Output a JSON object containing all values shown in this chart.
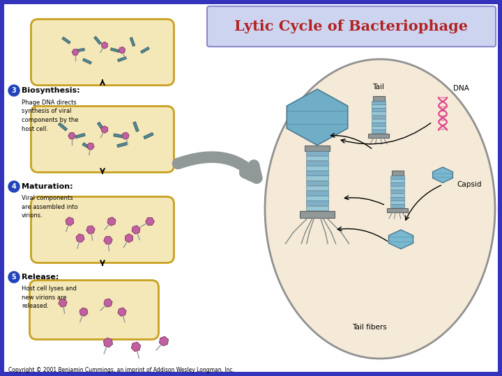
{
  "title": "Lytic Cycle of Bacteriophage",
  "title_color": "#b22222",
  "title_bg_color": "#ccd4f0",
  "title_border_color": "#8888cc",
  "bg_color": "#3333bb",
  "inner_bg": "#ffffff",
  "copyright": "Copyright © 2001 Benjamin Cummings, an imprint of Addison Wesley Longman, Inc.",
  "step3_label": "Biosynthesis:",
  "step3_text": "Phage DNA directs\nsynthesis of viral\ncomponents by the\nhost cell.",
  "step4_label": "Maturation:",
  "step4_text": "Viral components\nare assembled into\nvirions.",
  "step5_label": "Release:",
  "step5_text": "Host cell lyses and\nnew virions are\nreleased.",
  "cell_fill": "#f5e8b8",
  "cell_border": "#c8a020",
  "ellipse_fill": "#f5ead8",
  "ellipse_border": "#909090",
  "phage_blue": "#70aec8",
  "phage_dark": "#4a7a90",
  "phage_mid": "#88c0d8",
  "dna_pink": "#e0408a",
  "tail_gray": "#909898",
  "tail_light": "#a8b8c0",
  "tail_seg1": "#80b0c8",
  "tail_seg2": "#98c8d8",
  "fiber_color": "#808888",
  "arrow_gray": "#909898",
  "step_num_bg": "#2244bb",
  "capsid_blue": "#78b8d0",
  "magenta_body": "#c060a0"
}
